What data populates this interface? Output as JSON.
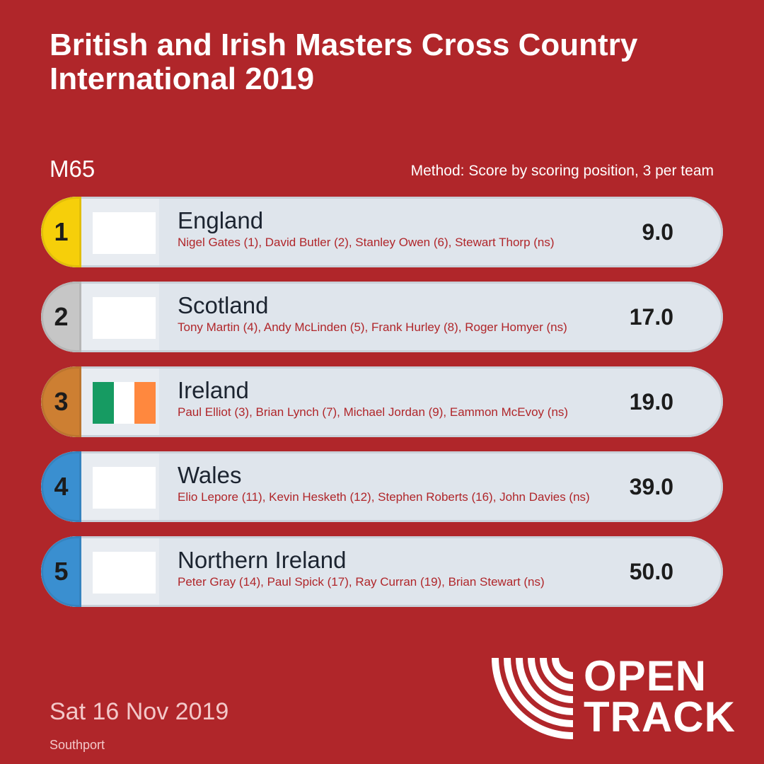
{
  "header": {
    "title_line1": "British and Irish Masters Cross Country",
    "title_line2": "International 2019",
    "category": "M65",
    "method": "Method: Score by scoring position, 3 per team"
  },
  "results": [
    {
      "rank": "1",
      "team": "England",
      "members": "Nigel Gates (1), David Butler (2), Stanley Owen (6), Stewart Thorp (ns)",
      "score": "9.0",
      "rank_color": "#f6cf0a",
      "flag": "blank"
    },
    {
      "rank": "2",
      "team": "Scotland",
      "members": "Tony Martin (4), Andy McLinden (5), Frank Hurley (8), Roger Homyer (ns)",
      "score": "17.0",
      "rank_color": "#c6c6c6",
      "flag": "blank"
    },
    {
      "rank": "3",
      "team": "Ireland",
      "members": "Paul Elliot (3), Brian Lynch (7), Michael Jordan (9), Eammon McEvoy (ns)",
      "score": "19.0",
      "rank_color": "#cd7f32",
      "flag": "ireland"
    },
    {
      "rank": "4",
      "team": "Wales",
      "members": "Elio Lepore (11), Kevin Hesketh (12), Stephen Roberts (16), John Davies (ns)",
      "score": "39.0",
      "rank_color": "#3a8fd0",
      "flag": "blank"
    },
    {
      "rank": "5",
      "team": "Northern Ireland",
      "members": "Peter Gray (14), Paul Spick (17), Ray Curran (19), Brian Stewart (ns)",
      "score": "50.0",
      "rank_color": "#3a8fd0",
      "flag": "blank"
    }
  ],
  "flag_colors": {
    "ireland": [
      "#169b62",
      "#ffffff",
      "#ff883e"
    ]
  },
  "footer": {
    "date": "Sat 16 Nov 2019",
    "venue": "Southport"
  },
  "logo": {
    "line1": "OPEN",
    "line2": "TRACK",
    "icon": "opentrack-logo-icon"
  },
  "colors": {
    "background": "#b0262a",
    "row": "#dfe5ec",
    "members_text": "#b0262a"
  }
}
